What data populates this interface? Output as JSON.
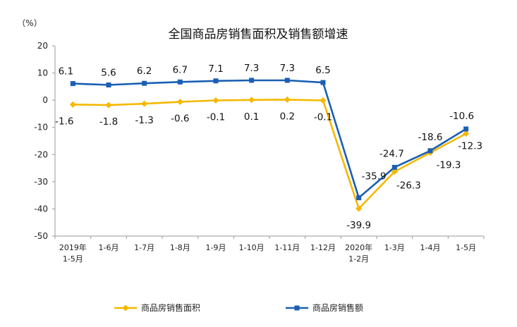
{
  "chart_data": {
    "type": "line",
    "title": "全国商品房销售面积及销售额增速",
    "unit_label": "（%）",
    "ylim": [
      -50,
      20
    ],
    "yticks": [
      20,
      10,
      0,
      -10,
      -20,
      -30,
      -40,
      -50
    ],
    "categories": [
      [
        "2019年",
        "1-5月"
      ],
      [
        "1-6月"
      ],
      [
        "1-7月"
      ],
      [
        "1-8月"
      ],
      [
        "1-9月"
      ],
      [
        "1-10月"
      ],
      [
        "1-11月"
      ],
      [
        "1-12月"
      ],
      [
        "2020年",
        "1-2月"
      ],
      [
        "1-3月"
      ],
      [
        "1-4月"
      ],
      [
        "1-5月"
      ]
    ],
    "series": [
      {
        "name": "商品房销售面积",
        "color": "#F5B800",
        "marker": "diamond",
        "values": [
          -1.6,
          -1.8,
          -1.3,
          -0.6,
          -0.1,
          0.1,
          0.2,
          -0.1,
          -39.9,
          -26.3,
          -19.3,
          -12.3
        ],
        "labels": [
          "-1.6",
          "-1.8",
          "-1.3",
          "-0.6",
          "-0.1",
          "0.1",
          "0.2",
          "-0.1",
          "-39.9",
          "-26.3",
          "-19.3",
          "-12.3"
        ]
      },
      {
        "name": "商品房销售额",
        "color": "#1A5FB4",
        "marker": "square",
        "values": [
          6.1,
          5.6,
          6.2,
          6.7,
          7.1,
          7.3,
          7.3,
          6.5,
          -35.9,
          -24.7,
          -18.6,
          -10.6
        ],
        "labels": [
          "6.1",
          "5.6",
          "6.2",
          "6.7",
          "7.1",
          "7.3",
          "7.3",
          "6.5",
          "-35.9",
          "-24.7",
          "-18.6",
          "-10.6"
        ]
      }
    ],
    "grid": false,
    "legend_position": "bottom"
  }
}
